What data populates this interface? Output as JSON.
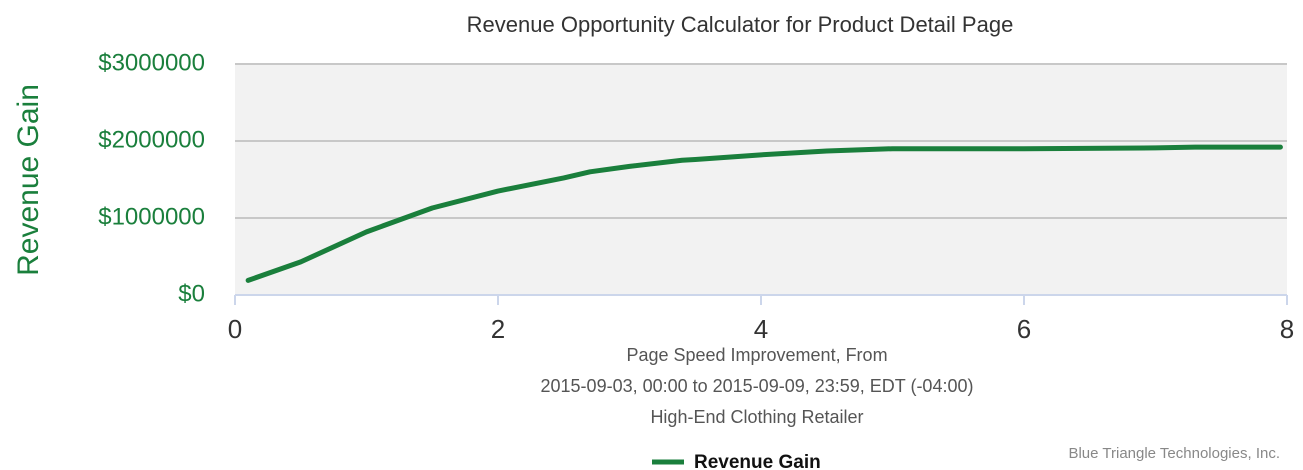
{
  "chart_data": {
    "type": "line",
    "title": "Revenue Opportunity Calculator for Product Detail Page",
    "y_label": "Revenue Gain",
    "x_label_lines": [
      "Page Speed Improvement, From",
      "2015-09-03, 00:00 to 2015-09-09, 23:59, EDT (-04:00)",
      "High-End Clothing Retailer"
    ],
    "credits": "Blue Triangle Technologies, Inc.",
    "x": [
      0.1,
      0.5,
      1.0,
      1.5,
      2.0,
      2.5,
      2.7,
      3.0,
      3.4,
      3.5,
      4.0,
      4.5,
      5.0,
      6.0,
      7.0,
      7.3,
      7.95
    ],
    "series": [
      {
        "name": "Revenue Gain",
        "color": "#1a7f3c",
        "values": [
          190000,
          430000,
          820000,
          1130000,
          1350000,
          1520000,
          1600000,
          1670000,
          1750000,
          1760000,
          1820000,
          1870000,
          1900000,
          1900000,
          1910000,
          1920000,
          1920000
        ]
      }
    ],
    "xlim": [
      0,
      8
    ],
    "xticks": [
      0,
      2,
      4,
      6,
      8
    ],
    "ylim": [
      0,
      3000000
    ],
    "yticks": [
      {
        "value": 0,
        "label": "$0"
      },
      {
        "value": 1000000,
        "label": "$1000000"
      },
      {
        "value": 2000000,
        "label": "$2000000"
      },
      {
        "value": 3000000,
        "label": "$3000000"
      }
    ],
    "grid": true
  }
}
